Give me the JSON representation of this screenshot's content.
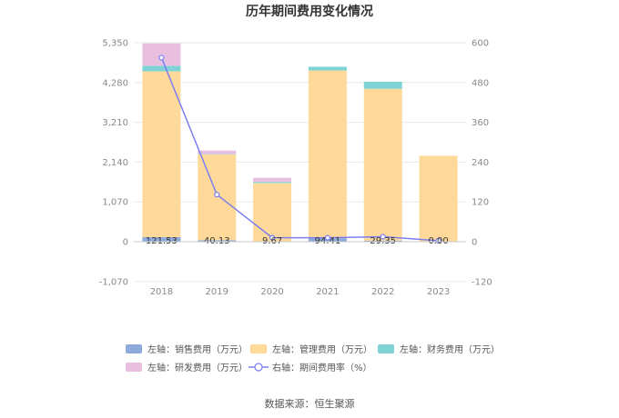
{
  "chart_data": {
    "type": "bar",
    "title": "历年期间费用变化情况",
    "categories": [
      "2018",
      "2019",
      "2020",
      "2021",
      "2022",
      "2023"
    ],
    "y_left": {
      "min": -1070,
      "max": 5350,
      "ticks": [
        "-1,070",
        "0",
        "1,070",
        "2,140",
        "3,210",
        "4,280",
        "5,350"
      ],
      "tick_values": [
        -1070,
        0,
        1070,
        2140,
        3210,
        4280,
        5350
      ]
    },
    "y_right": {
      "min": -120,
      "max": 600,
      "ticks": [
        "-120",
        "0",
        "120",
        "240",
        "360",
        "480",
        "600"
      ],
      "tick_values": [
        -120,
        0,
        120,
        240,
        360,
        480,
        600
      ]
    },
    "series": [
      {
        "name": "左轴：销售费用（万元）",
        "axis": "left",
        "kind": "bar",
        "color": "#8eaadb",
        "values": [
          121.53,
          40.13,
          9.67,
          94.41,
          29.35,
          0.0
        ],
        "labels": [
          "121.53",
          "40.13",
          "9.67",
          "94.41",
          "29.35",
          "0.00"
        ]
      },
      {
        "name": "左轴：管理费用（万元）",
        "axis": "left",
        "kind": "bar",
        "color": "#fed99a",
        "values": [
          4460,
          2310,
          1570,
          4510,
          4080,
          2310
        ]
      },
      {
        "name": "左轴：财务费用（万元）",
        "axis": "left",
        "kind": "bar",
        "color": "#7fd3d6",
        "values": [
          150,
          10,
          30,
          100,
          190,
          0
        ]
      },
      {
        "name": "左轴：研发费用（万元）",
        "axis": "left",
        "kind": "bar",
        "color": "#e9bfe0",
        "values": [
          600,
          90,
          110,
          0,
          0,
          0
        ]
      },
      {
        "name": "右轴：期间费用率（%）",
        "axis": "right",
        "kind": "line",
        "color": "#7b7ff0",
        "values": [
          555,
          142,
          12,
          12,
          15,
          3
        ]
      }
    ],
    "grid": true,
    "legend_position": "bottom"
  },
  "source_text": "数据来源：恒生聚源"
}
